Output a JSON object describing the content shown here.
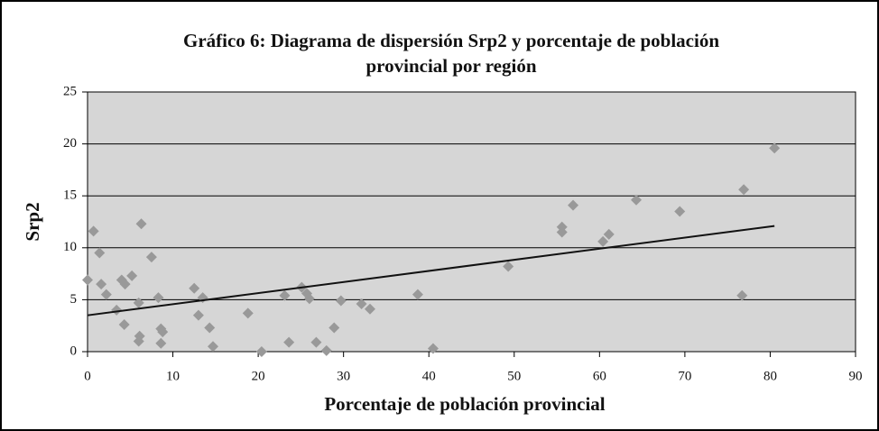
{
  "chart_data": {
    "type": "scatter",
    "title": [
      "Gráfico 6: Diagrama de dispersión Srp2 y porcentaje de población",
      "provincial por región"
    ],
    "x_label": "Porcentaje de población provincial",
    "y_label": "Srp2",
    "color": "#999999",
    "x": [
      0,
      0.7,
      1.4,
      1.6,
      2.2,
      3.4,
      4.0,
      4.4,
      4.3,
      5.2,
      6.0,
      6.1,
      6.0,
      6.3,
      7.5,
      8.3,
      8.6,
      8.8,
      8.6,
      12.5,
      13.0,
      13.5,
      14.3,
      14.7,
      18.8,
      20.4,
      23.1,
      23.6,
      25.1,
      25.7,
      26.0,
      26.8,
      28.0,
      28.9,
      29.7,
      32.1,
      33.1,
      38.7,
      40.5,
      49.3,
      55.6,
      55.6,
      56.9,
      60.4,
      61.1,
      64.3,
      69.4,
      76.7,
      76.9,
      80.5
    ],
    "values": [
      6.9,
      11.6,
      9.5,
      6.5,
      5.5,
      4.0,
      6.9,
      6.5,
      2.6,
      7.3,
      4.7,
      1.5,
      1.0,
      12.3,
      9.1,
      5.2,
      2.2,
      1.9,
      0.8,
      6.1,
      3.5,
      5.2,
      2.3,
      0.5,
      3.7,
      0.0,
      5.4,
      0.9,
      6.2,
      5.6,
      5.1,
      0.9,
      0.1,
      2.3,
      4.9,
      4.6,
      4.1,
      5.5,
      0.3,
      8.2,
      12.0,
      11.5,
      14.1,
      10.6,
      11.3,
      14.6,
      13.5,
      5.4,
      15.6,
      19.6
    ],
    "trendline": {
      "x": [
        0,
        80.5
      ],
      "y": [
        3.5,
        12.1
      ],
      "color": "#111111"
    },
    "xlim": [
      0,
      90
    ],
    "xticks": [
      0,
      10,
      20,
      30,
      40,
      50,
      60,
      70,
      80,
      90
    ],
    "ylim": [
      0,
      25
    ],
    "yticks": [
      0,
      5,
      10,
      15,
      20,
      25
    ],
    "grid": true
  }
}
